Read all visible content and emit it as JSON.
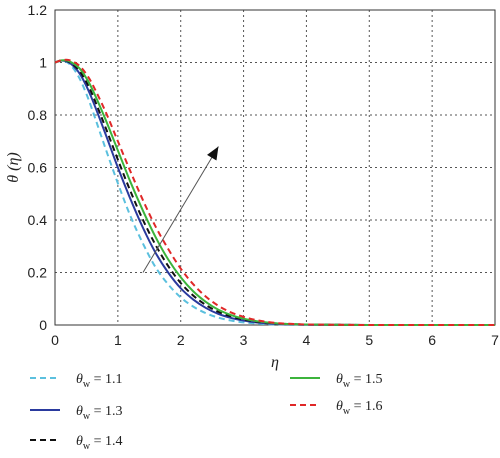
{
  "chart_data": {
    "type": "line",
    "title": "",
    "xlabel": "η",
    "ylabel": "θ (η)",
    "xlim": [
      0,
      7
    ],
    "ylim": [
      0,
      1.2
    ],
    "xticks": [
      "0",
      "1",
      "2",
      "3",
      "4",
      "5",
      "6",
      "7"
    ],
    "yticks": [
      "0",
      "0.2",
      "0.4",
      "0.6",
      "0.8",
      "1",
      "1.2"
    ],
    "grid": true,
    "legend_position": "bottom",
    "annotation": "arrow indicating increasing θw",
    "series": [
      {
        "name": "θw = 1.1",
        "color": "#5bc0de",
        "dash": "dashed",
        "x": [
          0,
          0.1,
          0.2,
          0.3,
          0.4,
          0.5,
          0.6,
          0.8,
          1.0,
          1.2,
          1.4,
          1.6,
          1.8,
          2.0,
          2.2,
          2.4,
          2.6,
          2.8,
          3.0,
          3.2,
          3.4,
          3.6,
          3.8,
          4.0,
          5.0,
          6.0,
          7.0
        ],
        "y": [
          1.0,
          1.006,
          1.0,
          0.975,
          0.935,
          0.88,
          0.815,
          0.675,
          0.54,
          0.415,
          0.31,
          0.22,
          0.155,
          0.105,
          0.07,
          0.045,
          0.028,
          0.017,
          0.01,
          0.006,
          0.003,
          0.002,
          0.001,
          0.0,
          0.0,
          0.0,
          0.0
        ]
      },
      {
        "name": "θw = 1.3",
        "color": "#2a3a9e",
        "dash": "solid",
        "x": [
          0,
          0.1,
          0.2,
          0.3,
          0.4,
          0.5,
          0.6,
          0.8,
          1.0,
          1.2,
          1.4,
          1.6,
          1.8,
          2.0,
          2.2,
          2.4,
          2.6,
          2.8,
          3.0,
          3.2,
          3.4,
          3.6,
          3.8,
          4.0,
          5.0,
          6.0,
          7.0
        ],
        "y": [
          1.0,
          1.007,
          1.003,
          0.985,
          0.955,
          0.91,
          0.855,
          0.73,
          0.6,
          0.48,
          0.37,
          0.275,
          0.2,
          0.14,
          0.097,
          0.065,
          0.042,
          0.027,
          0.017,
          0.01,
          0.006,
          0.003,
          0.002,
          0.001,
          0.0,
          0.0,
          0.0
        ]
      },
      {
        "name": "θw = 1.4",
        "color": "#111111",
        "dash": "dashed",
        "x": [
          0,
          0.1,
          0.2,
          0.3,
          0.4,
          0.5,
          0.6,
          0.8,
          1.0,
          1.2,
          1.4,
          1.6,
          1.8,
          2.0,
          2.2,
          2.4,
          2.6,
          2.8,
          3.0,
          3.2,
          3.4,
          3.6,
          3.8,
          4.0,
          5.0,
          6.0,
          7.0
        ],
        "y": [
          1.0,
          1.008,
          1.005,
          0.99,
          0.965,
          0.925,
          0.875,
          0.755,
          0.63,
          0.51,
          0.4,
          0.305,
          0.225,
          0.16,
          0.112,
          0.076,
          0.05,
          0.033,
          0.021,
          0.013,
          0.008,
          0.005,
          0.003,
          0.002,
          0.0,
          0.0,
          0.0
        ]
      },
      {
        "name": "θw = 1.5",
        "color": "#3cb43c",
        "dash": "solid",
        "x": [
          0,
          0.1,
          0.2,
          0.3,
          0.4,
          0.5,
          0.6,
          0.8,
          1.0,
          1.2,
          1.4,
          1.6,
          1.8,
          2.0,
          2.2,
          2.4,
          2.6,
          2.8,
          3.0,
          3.2,
          3.4,
          3.6,
          3.8,
          4.0,
          5.0,
          6.0,
          7.0
        ],
        "y": [
          1.0,
          1.008,
          1.007,
          0.995,
          0.975,
          0.94,
          0.895,
          0.785,
          0.665,
          0.545,
          0.435,
          0.335,
          0.25,
          0.182,
          0.128,
          0.088,
          0.058,
          0.038,
          0.024,
          0.015,
          0.009,
          0.005,
          0.003,
          0.002,
          0.0,
          0.0,
          0.0
        ]
      },
      {
        "name": "θw = 1.6",
        "color": "#e02828",
        "dash": "dashed",
        "x": [
          0,
          0.1,
          0.2,
          0.3,
          0.4,
          0.5,
          0.6,
          0.8,
          1.0,
          1.2,
          1.4,
          1.6,
          1.8,
          2.0,
          2.2,
          2.4,
          2.6,
          2.8,
          3.0,
          3.2,
          3.4,
          3.6,
          3.8,
          4.0,
          5.0,
          6.0,
          7.0
        ],
        "y": [
          1.0,
          1.008,
          1.01,
          1.002,
          0.985,
          0.955,
          0.915,
          0.815,
          0.7,
          0.585,
          0.475,
          0.375,
          0.29,
          0.215,
          0.155,
          0.108,
          0.073,
          0.048,
          0.031,
          0.019,
          0.011,
          0.006,
          0.004,
          0.002,
          0.0,
          0.0,
          0.0
        ]
      }
    ],
    "legend": [
      {
        "label_symbol": "θ",
        "label_sub": "w",
        "label_value": " = 1.1",
        "color": "#5bc0de",
        "dash": "dashed"
      },
      {
        "label_symbol": "θ",
        "label_sub": "w",
        "label_value": " = 1.3",
        "color": "#2a3a9e",
        "dash": "solid"
      },
      {
        "label_symbol": "θ",
        "label_sub": "w",
        "label_value": " = 1.4",
        "color": "#111111",
        "dash": "dashed"
      },
      {
        "label_symbol": "θ",
        "label_sub": "w",
        "label_value": " = 1.5",
        "color": "#3cb43c",
        "dash": "solid"
      },
      {
        "label_symbol": "θ",
        "label_sub": "w",
        "label_value": " = 1.6",
        "color": "#e02828",
        "dash": "dashed"
      }
    ],
    "arrow": {
      "from": [
        1.4,
        0.2
      ],
      "to": [
        2.6,
        0.68
      ]
    }
  }
}
